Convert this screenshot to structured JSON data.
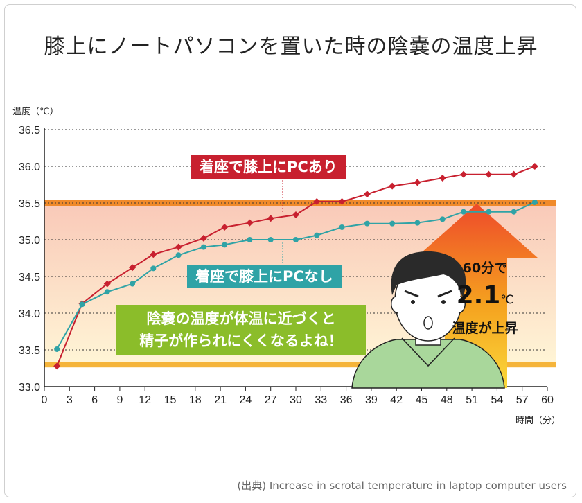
{
  "title": "膝上にノートパソコンを置いた時の陰嚢の温度上昇",
  "source": "(出典) Increase in scrotal temperature in laptop computer users",
  "colors": {
    "with_pc": "#c8202f",
    "without_pc": "#2fa3a6",
    "band_line": "#f08a2a",
    "arrow": "#f06a2a",
    "callout": "#8bbd2a"
  },
  "annotations": {
    "with_pc_label": "着座で膝上にPCあり",
    "without_pc_label": "着座で膝上にPCなし",
    "message_line1": "陰嚢の温度が体温に近づくと",
    "message_line2": "精子が作られにくくなるよね！",
    "rise_line1": "60分で",
    "rise_value": "2.1",
    "rise_unit": "℃",
    "rise_line3": "温度が上昇"
  },
  "chart_data": {
    "type": "line",
    "ylabel": "温度（℃）",
    "xlabel": "時間（分）",
    "xlim": [
      0,
      60
    ],
    "ylim": [
      33.0,
      36.5
    ],
    "xticks": [
      "0",
      "3",
      "6",
      "9",
      "12",
      "15",
      "18",
      "21",
      "24",
      "27",
      "30",
      "33",
      "36",
      "39",
      "42",
      "45",
      "48",
      "51",
      "54",
      "57",
      "60"
    ],
    "yticks": [
      "33.0",
      "33.5",
      "34.0",
      "34.5",
      "35.0",
      "35.5",
      "36.0",
      "36.5"
    ],
    "grid": true,
    "reference_lines": [
      35.5,
      33.3
    ],
    "series": [
      {
        "name": "着座で膝上にPCあり",
        "x": [
          1.5,
          4.5,
          7.5,
          10.5,
          13.0,
          16.0,
          19.0,
          21.5,
          24.5,
          27.0,
          30.0,
          32.5,
          35.5,
          38.5,
          41.5,
          44.5,
          47.5,
          50.0,
          53.0,
          56.0,
          58.5
        ],
        "y": [
          33.28,
          34.13,
          34.4,
          34.62,
          34.8,
          34.9,
          35.02,
          35.17,
          35.23,
          35.29,
          35.34,
          35.52,
          35.52,
          35.62,
          35.73,
          35.78,
          35.84,
          35.89,
          35.89,
          35.89,
          36.0
        ]
      },
      {
        "name": "着座で膝上にPCなし",
        "x": [
          1.5,
          4.5,
          7.5,
          10.5,
          13.0,
          16.0,
          19.0,
          21.5,
          24.5,
          27.0,
          30.0,
          32.5,
          35.5,
          38.5,
          41.5,
          44.5,
          47.5,
          50.0,
          53.0,
          56.0,
          58.5
        ],
        "y": [
          33.51,
          34.12,
          34.29,
          34.4,
          34.61,
          34.79,
          34.9,
          34.93,
          35.0,
          35.0,
          35.0,
          35.06,
          35.17,
          35.22,
          35.22,
          35.23,
          35.28,
          35.38,
          35.38,
          35.38,
          35.51
        ]
      }
    ]
  }
}
